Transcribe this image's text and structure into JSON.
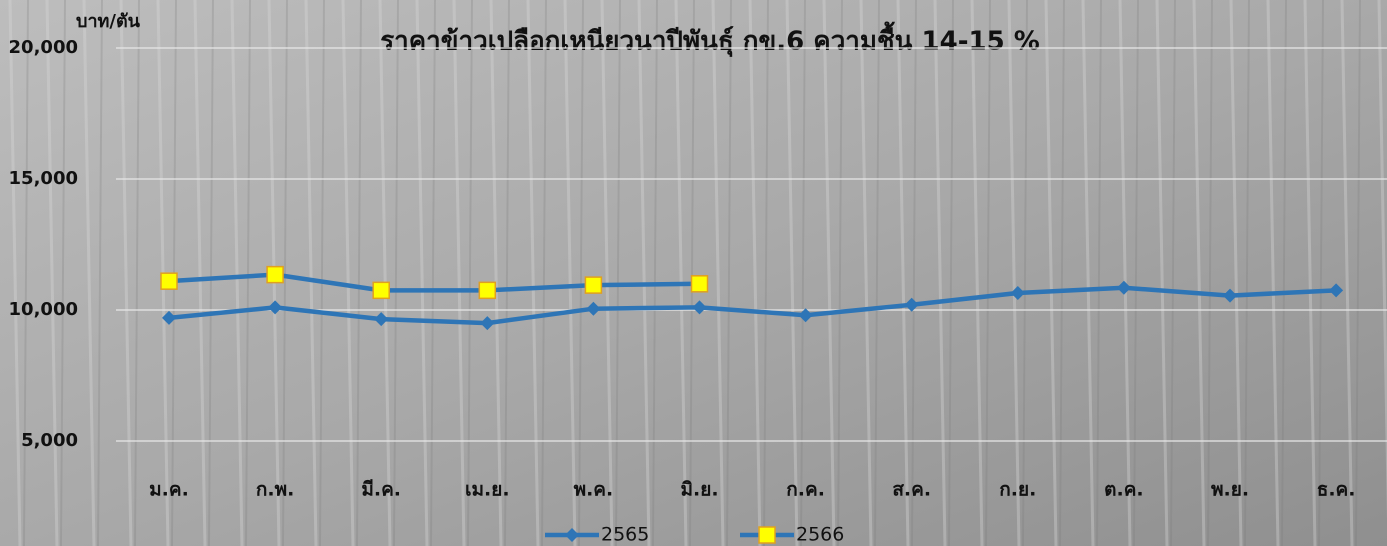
{
  "chart_data": {
    "type": "line",
    "title": "ราคาข้าวเปลือกเหนียวนาปีพันธุ์ กข.6 ความชื้น 14-15 %",
    "y_label": "บาท/ตัน",
    "categories": [
      "ม.ค.",
      "ก.พ.",
      "มี.ค.",
      "เม.ย.",
      "พ.ค.",
      "มิ.ย.",
      "ก.ค.",
      "ส.ค.",
      "ก.ย.",
      "ต.ค.",
      "พ.ย.",
      "ธ.ค."
    ],
    "series": [
      {
        "name": "2565",
        "color": "#2e75b6",
        "marker": "diamond",
        "values": [
          9700,
          10100,
          9650,
          9500,
          10050,
          10100,
          9800,
          10200,
          10650,
          10850,
          10550,
          10750
        ]
      },
      {
        "name": "2566",
        "color": "#2e75b6",
        "marker": "square",
        "values": [
          11100,
          11350,
          10750,
          10750,
          10950,
          11000,
          null,
          null,
          null,
          null,
          null,
          null
        ]
      }
    ],
    "ylim": [
      5000,
      20000
    ],
    "yticks": [
      {
        "value": 5000,
        "label": "5,000"
      },
      {
        "value": 10000,
        "label": "10,000"
      },
      {
        "value": 15000,
        "label": "15,000"
      },
      {
        "value": 20000,
        "label": "20,000"
      }
    ],
    "grid": true,
    "legend": "bottom"
  }
}
